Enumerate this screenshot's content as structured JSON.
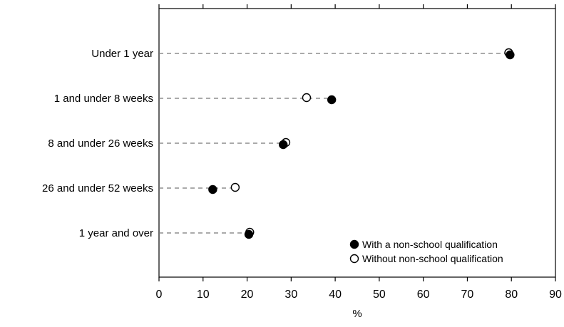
{
  "chart_data": {
    "type": "scatter",
    "orientation": "horizontal",
    "categories": [
      "Under 1 year",
      "1 and under 8 weeks",
      "8 and under 26 weeks",
      "26 and under 52 weeks",
      "1 year and over"
    ],
    "series": [
      {
        "name": "With a non-school qualification",
        "marker": "filled-circle",
        "values": [
          79.7,
          39.2,
          28.2,
          12.2,
          20.4
        ]
      },
      {
        "name": "Without non-school qualification",
        "marker": "open-circle",
        "values": [
          79.4,
          33.5,
          28.8,
          17.3,
          20.6
        ]
      }
    ],
    "x_ticks": [
      "0",
      "10",
      "20",
      "30",
      "40",
      "50",
      "60",
      "70",
      "80",
      "90"
    ],
    "xlim": [
      0,
      90
    ],
    "xlabel": "%",
    "ylabel": "",
    "title": "",
    "grid": false,
    "connector": "dashed line from axis to farthest point",
    "legend_position": "bottom-right"
  }
}
